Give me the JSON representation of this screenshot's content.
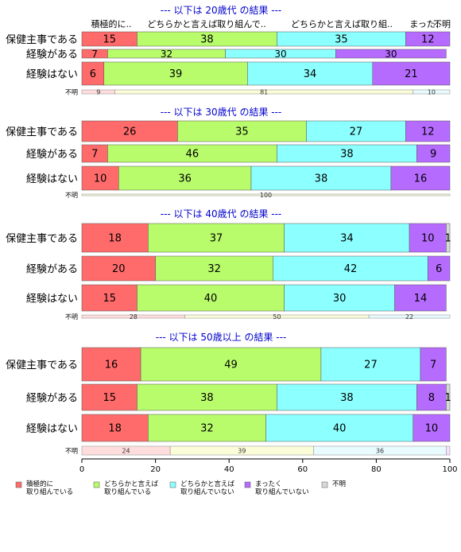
{
  "chart_data": {
    "type": "bar",
    "orientation": "horizontal",
    "stacked": true,
    "xlim": [
      0,
      100
    ],
    "x_ticks": [
      "0",
      "20",
      "40",
      "60",
      "80",
      "100"
    ],
    "colors": {
      "active": "#ff6b6b",
      "somewhat_active": "#b8fb6b",
      "somewhat_inactive": "#8cffff",
      "inactive": "#b66bff",
      "unknown": "#d9d9d9",
      "title": "#0000cc",
      "unknown_bar_1": "#ffdddd",
      "unknown_bar_2": "#fbfdd8",
      "unknown_bar_3": "#e8fbff",
      "unknown_bar_4": "#f5e2ff"
    },
    "column_headers": [
      "積極的に..",
      "どちらかと言えば取り組んで..",
      "どちらかと言えば取り組..",
      "まった..",
      "不明"
    ],
    "legend": [
      {
        "line1": "積極的に",
        "line2": "取り組んでいる"
      },
      {
        "line1": "どちらかと言えば",
        "line2": "取り組んでいる"
      },
      {
        "line1": "どちらかと言えば",
        "line2": "取り組んでいない"
      },
      {
        "line1": "まったく",
        "line2": "取り組んでいない"
      },
      {
        "line1": "不明",
        "line2": ""
      }
    ],
    "panels": [
      {
        "title": "--- 以下は 20歳代 の結果 ---",
        "rows": [
          {
            "label": "保健主事である",
            "values": [
              15,
              38,
              35,
              12,
              0
            ]
          },
          {
            "label": "経験がある",
            "values": [
              7,
              32,
              30,
              30,
              0
            ]
          },
          {
            "label": "経験はない",
            "values": [
              6,
              39,
              34,
              21,
              0
            ]
          }
        ],
        "unknown_label": "不明",
        "unknown_values": [
          9,
          81,
          10
        ]
      },
      {
        "title": "--- 以下は 30歳代 の結果 ---",
        "rows": [
          {
            "label": "保健主事である",
            "values": [
              26,
              35,
              27,
              12,
              0
            ]
          },
          {
            "label": "経験がある",
            "values": [
              7,
              46,
              38,
              9,
              0
            ]
          },
          {
            "label": "経験はない",
            "values": [
              10,
              36,
              38,
              16,
              0
            ]
          }
        ],
        "unknown_label": "不明",
        "unknown_values": [
          0,
          100,
          0
        ]
      },
      {
        "title": "--- 以下は 40歳代 の結果 ---",
        "rows": [
          {
            "label": "保健主事である",
            "values": [
              18,
              37,
              34,
              10,
              1
            ]
          },
          {
            "label": "経験がある",
            "values": [
              20,
              32,
              42,
              6,
              0
            ]
          },
          {
            "label": "経験はない",
            "values": [
              15,
              40,
              30,
              14,
              0
            ]
          }
        ],
        "unknown_label": "不明",
        "unknown_values": [
          28,
          50,
          22
        ]
      },
      {
        "title": "--- 以下は 50歳以上 の結果 ---",
        "rows": [
          {
            "label": "保健主事である",
            "values": [
              16,
              49,
              27,
              7,
              0
            ]
          },
          {
            "label": "経験がある",
            "values": [
              15,
              38,
              38,
              8,
              1
            ]
          },
          {
            "label": "経験はない",
            "values": [
              18,
              32,
              40,
              10,
              0
            ]
          }
        ],
        "unknown_label": "不明",
        "unknown_values": [
          24,
          39,
          36,
          1
        ]
      }
    ]
  }
}
